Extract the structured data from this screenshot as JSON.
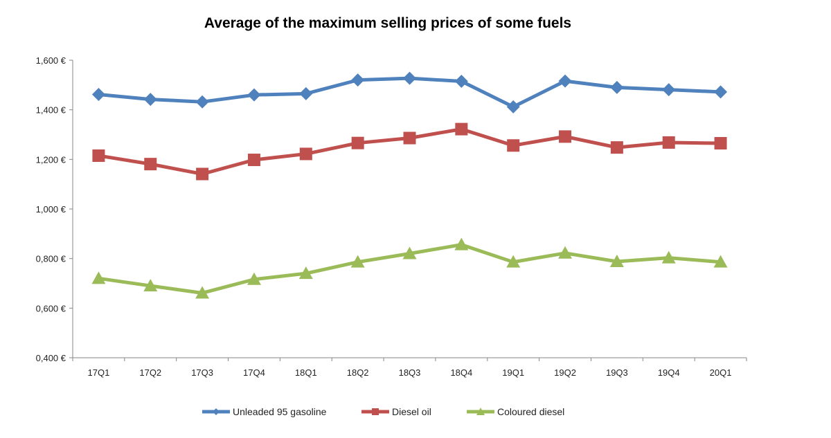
{
  "chart_data": {
    "type": "line",
    "title": "Average of the maximum  selling prices of some fuels",
    "xlabel": "",
    "ylabel": "",
    "categories": [
      "17Q1",
      "17Q2",
      "17Q3",
      "17Q4",
      "18Q1",
      "18Q2",
      "18Q3",
      "18Q4",
      "19Q1",
      "19Q2",
      "19Q3",
      "19Q4",
      "20Q1"
    ],
    "ylim": [
      0.4,
      1.6
    ],
    "yticks": [
      0.4,
      0.6,
      0.8,
      1.0,
      1.2,
      1.4,
      1.6
    ],
    "ytick_labels": [
      "0,400 €",
      "0,600 €",
      "0,800 €",
      "1,000 €",
      "1,200 €",
      "1,400 €",
      "1,600 €"
    ],
    "grid": false,
    "legend_position": "bottom",
    "series": [
      {
        "name": "Unleaded 95 gasoline",
        "color": "#4f81bd",
        "marker": "diamond",
        "values": [
          1.462,
          1.442,
          1.432,
          1.46,
          1.465,
          1.52,
          1.527,
          1.515,
          1.412,
          1.516,
          1.49,
          1.481,
          1.472
        ]
      },
      {
        "name": "Diesel oil",
        "color": "#c0504d",
        "marker": "square",
        "values": [
          1.215,
          1.181,
          1.141,
          1.198,
          1.222,
          1.266,
          1.286,
          1.322,
          1.256,
          1.292,
          1.248,
          1.268,
          1.265
        ]
      },
      {
        "name": "Coloured diesel",
        "color": "#9bbb59",
        "marker": "triangle",
        "values": [
          0.72,
          0.69,
          0.661,
          0.716,
          0.74,
          0.786,
          0.82,
          0.856,
          0.786,
          0.822,
          0.788,
          0.803,
          0.786
        ]
      }
    ]
  }
}
